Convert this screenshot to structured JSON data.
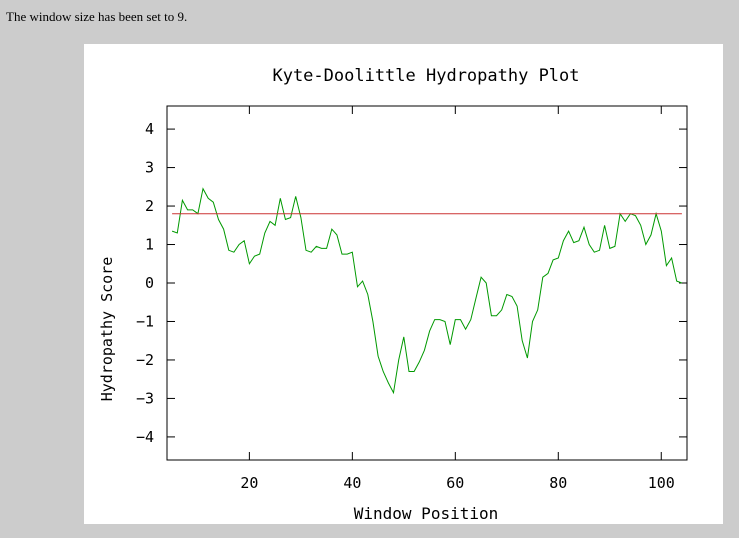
{
  "page": {
    "status_message": "The window size has been set to 9."
  },
  "chart_data": {
    "type": "line",
    "title": "Kyte-Doolittle Hydropathy Plot",
    "xlabel": "Window Position",
    "ylabel": "Hydropathy Score",
    "xlim": [
      4,
      105
    ],
    "ylim": [
      -4.6,
      4.6
    ],
    "x_ticks": [
      20,
      40,
      60,
      80,
      100
    ],
    "y_ticks": [
      -4,
      -3,
      -2,
      -1,
      0,
      1,
      2,
      3,
      4
    ],
    "grid": false,
    "series": [
      {
        "color": "#009900",
        "x": [
          5,
          6,
          7,
          8,
          9,
          10,
          11,
          12,
          13,
          14,
          15,
          16,
          17,
          18,
          19,
          20,
          21,
          22,
          23,
          24,
          25,
          26,
          27,
          28,
          29,
          30,
          31,
          32,
          33,
          34,
          35,
          36,
          37,
          38,
          39,
          40,
          41,
          42,
          43,
          44,
          45,
          46,
          47,
          48,
          49,
          50,
          51,
          52,
          53,
          54,
          55,
          56,
          57,
          58,
          59,
          60,
          61,
          62,
          63,
          64,
          65,
          66,
          67,
          68,
          69,
          70,
          71,
          72,
          73,
          74,
          75,
          76,
          77,
          78,
          79,
          80,
          81,
          82,
          83,
          84,
          85,
          86,
          87,
          88,
          89,
          90,
          91,
          92,
          93,
          94,
          95,
          96,
          97,
          98,
          99,
          100,
          101,
          102,
          103,
          104
        ],
        "y": [
          1.35,
          1.3,
          2.15,
          1.9,
          1.9,
          1.8,
          2.45,
          2.2,
          2.1,
          1.65,
          1.4,
          0.85,
          0.8,
          1.0,
          1.1,
          0.5,
          0.7,
          0.75,
          1.3,
          1.6,
          1.5,
          2.2,
          1.65,
          1.7,
          2.25,
          1.7,
          0.85,
          0.8,
          0.95,
          0.9,
          0.9,
          1.4,
          1.25,
          0.75,
          0.75,
          0.8,
          -0.1,
          0.05,
          -0.3,
          -1.0,
          -1.9,
          -2.3,
          -2.6,
          -2.85,
          -2.0,
          -1.4,
          -2.3,
          -2.3,
          -2.05,
          -1.75,
          -1.25,
          -0.95,
          -0.95,
          -1.0,
          -1.6,
          -0.95,
          -0.95,
          -1.2,
          -0.95,
          -0.4,
          0.15,
          0.0,
          -0.85,
          -0.85,
          -0.7,
          -0.3,
          -0.35,
          -0.6,
          -1.5,
          -1.95,
          -1.0,
          -0.7,
          0.15,
          0.25,
          0.6,
          0.65,
          1.1,
          1.35,
          1.05,
          1.1,
          1.45,
          1.0,
          0.8,
          0.85,
          1.5,
          0.9,
          0.95,
          1.8,
          1.6,
          1.8,
          1.75,
          1.5,
          1.0,
          1.25,
          1.8,
          1.35,
          0.45,
          0.65,
          0.05,
          0.0
        ]
      },
      {
        "color": "#cc3333",
        "x": [
          5,
          104
        ],
        "y": [
          1.8,
          1.8
        ]
      }
    ]
  }
}
